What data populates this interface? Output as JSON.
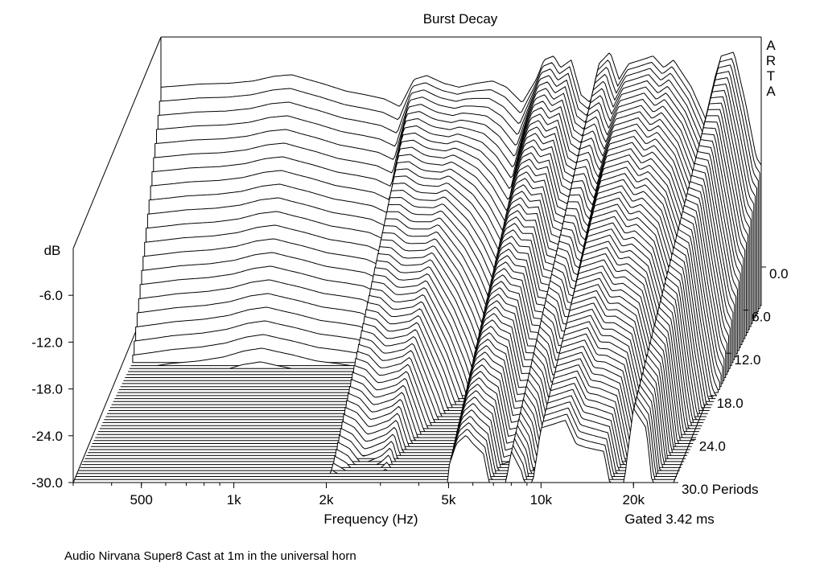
{
  "chart_data": {
    "type": "waterfall",
    "title": "Burst Decay",
    "watermark": "ARTA",
    "xlabel": "Frequency (Hz)",
    "ylabel": "dB",
    "zlabel": "Periods",
    "gating_note": "Gated 3.42 ms",
    "caption": "Audio Nirvana Super8 Cast at 1m in the universal horn",
    "x_scale": "log",
    "x_range_hz": [
      300,
      27000
    ],
    "x_ticks": [
      {
        "hz": 500,
        "label": "500"
      },
      {
        "hz": 1000,
        "label": "1k"
      },
      {
        "hz": 2000,
        "label": "2k"
      },
      {
        "hz": 5000,
        "label": "5k"
      },
      {
        "hz": 10000,
        "label": "10k"
      },
      {
        "hz": 20000,
        "label": "20k"
      }
    ],
    "y_range_db": [
      -30,
      0
    ],
    "y_ticks": [
      {
        "value": -6,
        "label": "-6.0"
      },
      {
        "value": -12,
        "label": "-12.0"
      },
      {
        "value": -18,
        "label": "-18.0"
      },
      {
        "value": -24,
        "label": "-24.0"
      },
      {
        "value": -30,
        "label": "-30.0"
      }
    ],
    "z_range_periods": [
      0,
      30
    ],
    "z_ticks": [
      {
        "value": 0,
        "label": "0.0"
      },
      {
        "value": 6,
        "label": "6.0"
      },
      {
        "value": 12,
        "label": "12.0"
      },
      {
        "value": 18,
        "label": "18.0"
      },
      {
        "value": 24,
        "label": "24.0"
      },
      {
        "value": 30,
        "label": "30.0"
      }
    ],
    "slice_count": 60,
    "initial_response": {
      "freq_hz": [
        300,
        350,
        400,
        500,
        600,
        700,
        800,
        900,
        1000,
        1200,
        1400,
        1600,
        1800,
        2000,
        2200,
        2500,
        2800,
        3200,
        3600,
        4000,
        4500,
        5000,
        5300,
        5700,
        6000,
        6500,
        7000,
        7500,
        8000,
        8700,
        9300,
        10000,
        11000,
        12000,
        13000,
        14000,
        16000,
        18000,
        19000,
        20000,
        22000,
        24000,
        26000,
        27000
      ],
      "level_db": [
        -2,
        -1.8,
        -1.6,
        -1.5,
        -1.2,
        -0.6,
        -0.4,
        -1.0,
        -1.5,
        -2.5,
        -3.0,
        -3.5,
        -4.5,
        -1.0,
        -0.5,
        -1.5,
        -2.0,
        -1.5,
        -1.2,
        -2.0,
        -4.0,
        -1.0,
        1.5,
        2.0,
        0.5,
        1.5,
        -3.0,
        -4.0,
        1.0,
        2.5,
        -1.0,
        1.0,
        1.5,
        2.0,
        0.5,
        1.5,
        -2.0,
        -6.5,
        -1.0,
        2.0,
        2.5,
        -4.0,
        -11.0,
        -12.0
      ]
    },
    "decay_rate_db_per_period": {
      "freq_hz": [
        300,
        1800,
        2000,
        2400,
        3000,
        4500,
        5000,
        6000,
        7000,
        8000,
        9000,
        10000,
        12000,
        14000,
        16000,
        18000,
        20000,
        22000,
        24000,
        27000
      ],
      "value": [
        2.8,
        2.6,
        1.0,
        1.1,
        1.0,
        2.0,
        0.9,
        0.85,
        1.0,
        0.9,
        1.1,
        0.8,
        0.8,
        0.9,
        0.8,
        1.0,
        0.75,
        0.85,
        1.1,
        1.2
      ]
    },
    "floor_db": -30,
    "grid": false,
    "legend": "none"
  }
}
